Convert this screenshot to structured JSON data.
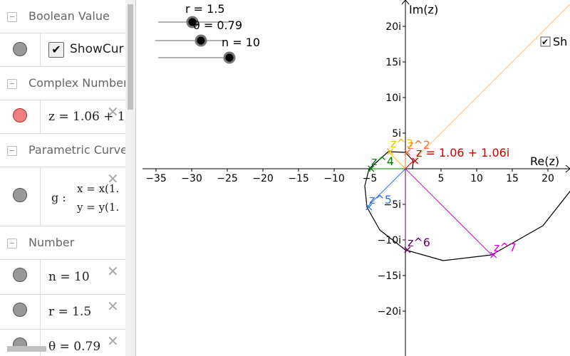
{
  "algebra_view": {
    "sections": [
      {
        "title": "Boolean Value",
        "items": [
          {
            "label": "ShowCur"
          }
        ]
      },
      {
        "title": "Complex Number",
        "items": [
          {
            "label": "z = 1.06 + 1"
          }
        ]
      },
      {
        "title": "Parametric Curve",
        "items": [
          {
            "name": "g :",
            "lines": [
              "x = x(1.",
              "y = y(1."
            ]
          }
        ]
      },
      {
        "title": "Number",
        "items": [
          {
            "label": "n = 10"
          },
          {
            "label": "r = 1.5"
          },
          {
            "label": "θ = 0.79"
          }
        ]
      }
    ]
  },
  "graphics_view": {
    "sliders": [
      "r = 1.5",
      "θ = 0.79",
      "n = 10"
    ],
    "checkbox": "Sh",
    "x_axis_label": "Re(z)",
    "y_axis_label": "Im(z)",
    "x_ticks": [
      "−35",
      "−30",
      "−25",
      "−20",
      "−15",
      "−10",
      "−5",
      "5",
      "10",
      "15",
      "20"
    ],
    "y_ticks": [
      "20i",
      "15i",
      "10i",
      "5i",
      "−5i",
      "−10i",
      "−15i",
      "−20i"
    ],
    "point_labels": [
      "z = 1.06 + 1.06i",
      "z^2",
      "z^3",
      "z^4",
      "z^5",
      "z^6",
      "z^7"
    ]
  }
}
